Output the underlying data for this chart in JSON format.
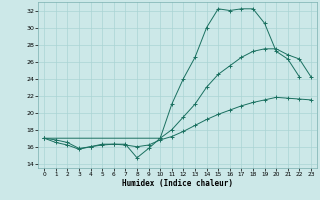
{
  "xlabel": "Humidex (Indice chaleur)",
  "bg_color": "#cce8e8",
  "grid_color": "#aad4d4",
  "line_color": "#1a7060",
  "xlim": [
    -0.5,
    23.5
  ],
  "ylim": [
    13.5,
    33.0
  ],
  "xticks": [
    0,
    1,
    2,
    3,
    4,
    5,
    6,
    7,
    8,
    9,
    10,
    11,
    12,
    13,
    14,
    15,
    16,
    17,
    18,
    19,
    20,
    21,
    22,
    23
  ],
  "yticks": [
    14,
    16,
    18,
    20,
    22,
    24,
    26,
    28,
    30,
    32
  ],
  "line1_x": [
    0,
    1,
    2,
    3,
    4,
    5,
    6,
    7,
    8,
    9,
    10,
    11,
    12,
    13,
    14,
    15,
    16,
    17,
    18,
    19,
    20,
    21,
    22
  ],
  "line1_y": [
    17.0,
    16.5,
    16.2,
    15.7,
    16.0,
    16.3,
    16.3,
    16.3,
    14.7,
    15.8,
    17.0,
    21.0,
    24.0,
    26.5,
    30.0,
    32.2,
    32.0,
    32.2,
    32.2,
    30.5,
    27.2,
    26.3,
    24.2
  ],
  "line2_x": [
    0,
    1,
    2,
    3,
    4,
    5,
    6,
    7,
    8,
    9,
    10,
    11,
    12,
    13,
    14,
    15,
    16,
    17,
    18,
    19,
    20,
    21,
    22,
    23
  ],
  "line2_y": [
    17.0,
    16.8,
    16.5,
    15.8,
    16.0,
    16.2,
    16.3,
    16.2,
    16.0,
    16.2,
    16.8,
    17.2,
    17.8,
    18.5,
    19.2,
    19.8,
    20.3,
    20.8,
    21.2,
    21.5,
    21.8,
    21.7,
    21.6,
    21.5
  ],
  "line3_x": [
    0,
    10,
    11,
    12,
    13,
    14,
    15,
    16,
    17,
    18,
    19,
    20,
    21,
    22,
    23
  ],
  "line3_y": [
    17.0,
    17.0,
    18.0,
    19.5,
    21.0,
    23.0,
    24.5,
    25.5,
    26.5,
    27.2,
    27.5,
    27.5,
    26.8,
    26.3,
    24.2
  ]
}
